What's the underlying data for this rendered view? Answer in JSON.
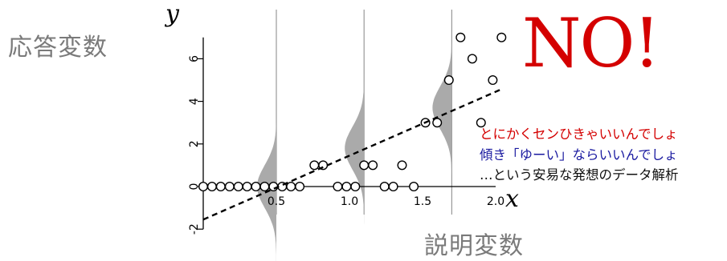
{
  "labels": {
    "y_variable_jp": "応答変数",
    "x_variable_jp": "説明変数",
    "exclamation": "NO!",
    "notes": [
      "とにかくセンひきゃいいんでしょ",
      "傾き「ゆーい」ならいいんでしょ",
      "…という安易な発想のデータ解析"
    ]
  },
  "colors": {
    "exclamation": "#d40000",
    "note_red": "#d40000",
    "note_blue": "#1a1aa0",
    "note_black": "#111111",
    "label_gray": "#7a7a7a",
    "density_fill": "#aaaaaa",
    "axis": "#000000"
  },
  "chart_data": {
    "type": "scatter",
    "xlabel": "x",
    "ylabel": "y",
    "xlim": [
      0.0,
      2.05
    ],
    "ylim": [
      -2.3,
      7.3
    ],
    "x_ticks": [
      0.5,
      1.0,
      1.5,
      2.0
    ],
    "x_tick_labels": [
      "0.5",
      "1.0",
      "1.5",
      "2.0"
    ],
    "y_ticks": [
      -2,
      0,
      2,
      4,
      6
    ],
    "y_tick_labels": [
      "-2",
      "0",
      "2",
      "4",
      "6"
    ],
    "points": [
      {
        "x": 0.0,
        "y": 0
      },
      {
        "x": 0.06,
        "y": 0
      },
      {
        "x": 0.12,
        "y": 0
      },
      {
        "x": 0.18,
        "y": 0
      },
      {
        "x": 0.24,
        "y": 0
      },
      {
        "x": 0.3,
        "y": 0
      },
      {
        "x": 0.36,
        "y": 0
      },
      {
        "x": 0.42,
        "y": 0
      },
      {
        "x": 0.48,
        "y": 0
      },
      {
        "x": 0.54,
        "y": 0
      },
      {
        "x": 0.6,
        "y": 0
      },
      {
        "x": 0.66,
        "y": 0
      },
      {
        "x": 0.76,
        "y": 1
      },
      {
        "x": 0.82,
        "y": 1
      },
      {
        "x": 0.92,
        "y": 0
      },
      {
        "x": 0.98,
        "y": 0
      },
      {
        "x": 1.04,
        "y": 0
      },
      {
        "x": 1.1,
        "y": 1
      },
      {
        "x": 1.16,
        "y": 1
      },
      {
        "x": 1.24,
        "y": 0
      },
      {
        "x": 1.3,
        "y": 0
      },
      {
        "x": 1.36,
        "y": 1
      },
      {
        "x": 1.44,
        "y": 0
      },
      {
        "x": 1.52,
        "y": 3
      },
      {
        "x": 1.6,
        "y": 3
      },
      {
        "x": 1.68,
        "y": 5
      },
      {
        "x": 1.76,
        "y": 7
      },
      {
        "x": 1.84,
        "y": 6
      },
      {
        "x": 1.9,
        "y": 3
      },
      {
        "x": 1.98,
        "y": 5
      },
      {
        "x": 2.04,
        "y": 7
      }
    ],
    "regression_line": {
      "style": "dashed",
      "x": [
        0.0,
        2.05
      ],
      "y": [
        -1.55,
        4.6
      ]
    },
    "densities": [
      {
        "x": 0.5,
        "mean": 0.0,
        "sd": 1.0
      },
      {
        "x": 1.1,
        "mean": 1.8,
        "sd": 1.0
      },
      {
        "x": 1.7,
        "mean": 3.7,
        "sd": 1.0
      }
    ]
  }
}
